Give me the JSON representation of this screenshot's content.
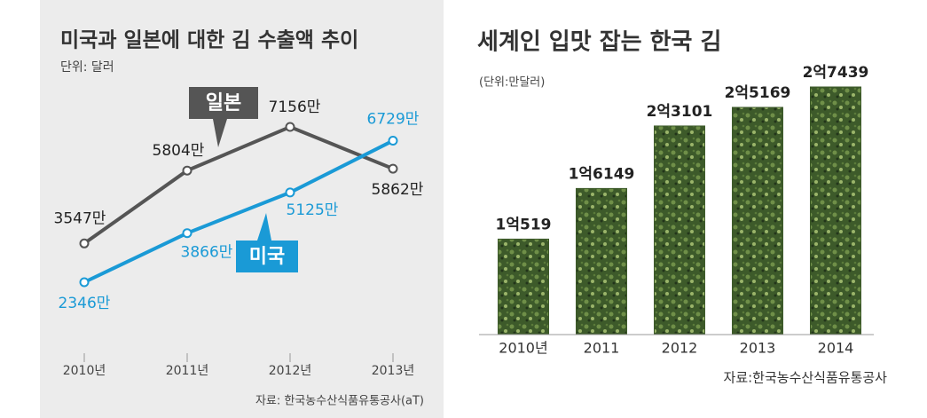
{
  "chart_data": [
    {
      "type": "line",
      "title": "미국과 일본에 대한 김 수출액 추이",
      "subtitle": "단위: 달러",
      "categories": [
        "2010년",
        "2011년",
        "2012년",
        "2013년"
      ],
      "series": [
        {
          "name": "일본",
          "color": "#555555",
          "values": [
            3547,
            5804,
            7156,
            5862
          ],
          "value_labels": [
            "3547만",
            "5804만",
            "7156만",
            "5862만"
          ]
        },
        {
          "name": "미국",
          "color": "#1a9ad6",
          "values": [
            2346,
            3866,
            5125,
            6729
          ],
          "value_labels": [
            "2346만",
            "3866만",
            "5125만",
            "6729만"
          ]
        }
      ],
      "source": "자료: 한국농수산식품유통공사(aT)"
    },
    {
      "type": "bar",
      "title": "세계인 입맛 잡는 한국 김",
      "subtitle": "(단위:만달러)",
      "categories": [
        "2010년",
        "2011",
        "2012",
        "2013",
        "2014"
      ],
      "values": [
        10519,
        16149,
        23101,
        25169,
        27439
      ],
      "value_labels": [
        "1억519",
        "1억6149",
        "2억3101",
        "2억5169",
        "2억7439"
      ],
      "color": "#3d5a2a",
      "source": "자료:한국농수산식품유통공사"
    }
  ]
}
